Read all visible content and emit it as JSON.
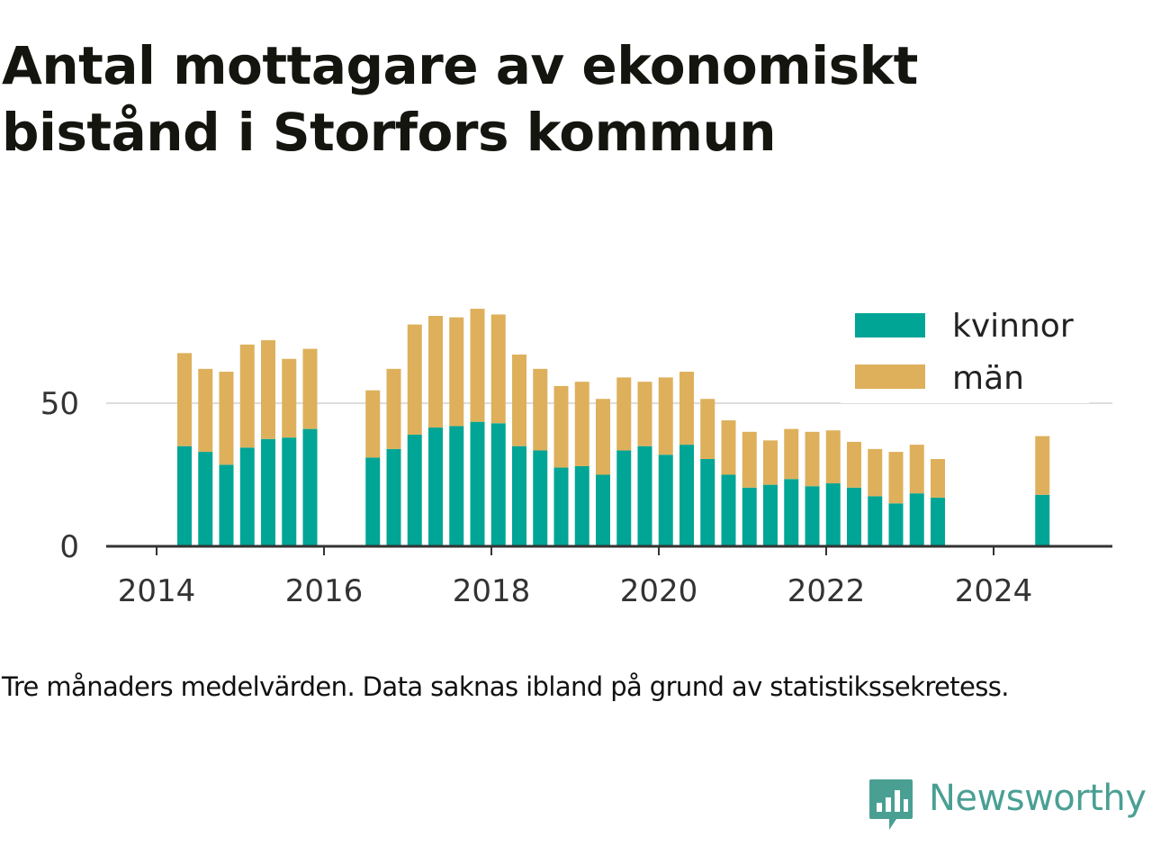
{
  "title": "Antal mottagare av ekonomiskt bistånd i Storfors kommun",
  "caption": "Tre månaders medelvärden. Data saknas ibland på grund av statistikssekretess.",
  "brand": {
    "name": "Newsworthy",
    "icon": "newsworthy-logo-icon",
    "color": "#4a9f93"
  },
  "colors": {
    "kvinnor": "#00a596",
    "man": "#deb05c",
    "grid": "#dddddd",
    "axis": "#333333"
  },
  "chart_data": {
    "type": "bar",
    "stacked": true,
    "title": "Antal mottagare av ekonomiskt bistånd i Storfors kommun",
    "xlabel": "",
    "ylabel": "",
    "ylim": [
      0,
      90
    ],
    "xlim": [
      "2013-06",
      "2025-03"
    ],
    "y_ticks": [
      0,
      50
    ],
    "x_ticks": [
      "2014",
      "2016",
      "2018",
      "2020",
      "2022",
      "2024"
    ],
    "grid": "horizontal",
    "legend": "top-right",
    "x": [
      "2014-05",
      "2014-08",
      "2014-11",
      "2015-02",
      "2015-05",
      "2015-08",
      "2015-11",
      "2016-08",
      "2016-11",
      "2017-02",
      "2017-05",
      "2017-08",
      "2017-11",
      "2018-02",
      "2018-05",
      "2018-08",
      "2018-11",
      "2019-02",
      "2019-05",
      "2019-08",
      "2019-11",
      "2020-02",
      "2020-05",
      "2020-08",
      "2020-11",
      "2021-02",
      "2021-05",
      "2021-08",
      "2021-11",
      "2022-02",
      "2022-05",
      "2022-08",
      "2022-11",
      "2023-02",
      "2023-05",
      "2024-08"
    ],
    "series": [
      {
        "name": "kvinnor",
        "values": [
          35,
          33,
          28.5,
          34.5,
          37.5,
          38,
          41,
          31,
          34,
          39,
          41.5,
          42,
          43.5,
          43,
          35,
          33.5,
          27.5,
          28,
          25,
          33.5,
          35,
          32,
          35.5,
          30.5,
          25,
          20.5,
          21.5,
          23.5,
          21,
          22,
          20.5,
          17.5,
          15,
          18.5,
          17,
          18
        ]
      },
      {
        "name": "män",
        "values": [
          32.5,
          29,
          32.5,
          36,
          34.5,
          27.5,
          28,
          23.5,
          28,
          38.5,
          39,
          38,
          39.5,
          38,
          32,
          28.5,
          28.5,
          29.5,
          26.5,
          25.5,
          22.5,
          27,
          25.5,
          21,
          19,
          19.5,
          15.5,
          17.5,
          19,
          18.5,
          16,
          16.5,
          18,
          17,
          13.5,
          20.5
        ]
      }
    ]
  }
}
